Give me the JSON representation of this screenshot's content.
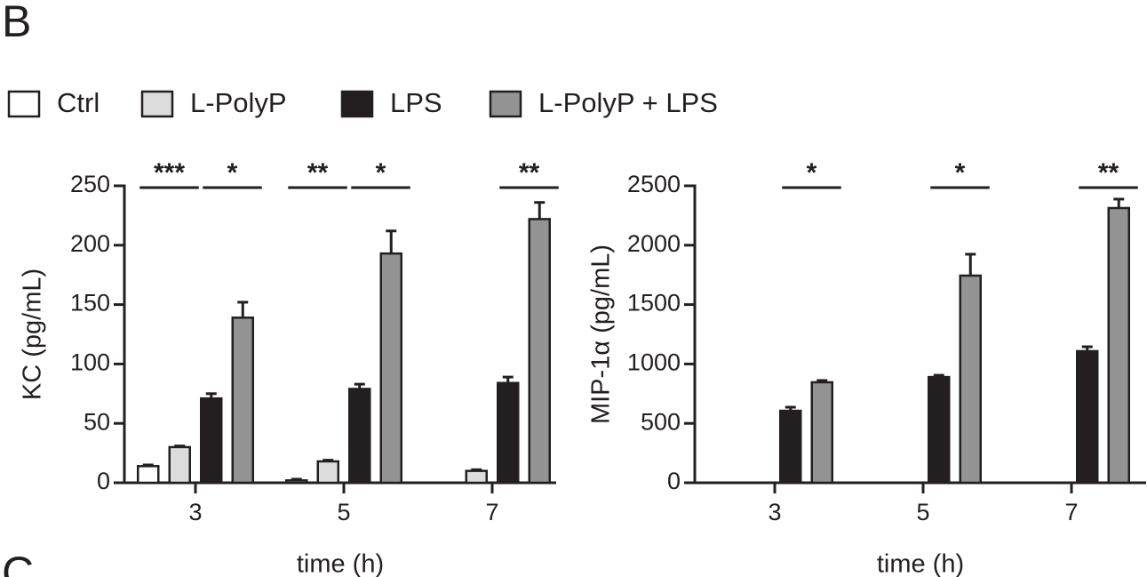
{
  "panels": [
    "B",
    "C"
  ],
  "chart_data": [
    {
      "type": "bar",
      "ylabel": "KC (pg/mL)",
      "xlabel": "time (h)",
      "categories": [
        "3",
        "5",
        "7"
      ],
      "ylim": [
        0,
        250
      ],
      "yticks": [
        0,
        50,
        100,
        150,
        200,
        250
      ],
      "series": [
        {
          "name": "Ctrl",
          "color": "#ffffff",
          "values": [
            14,
            2,
            0
          ],
          "errors": [
            1,
            1,
            0
          ]
        },
        {
          "name": "L-PolyP",
          "color": "#dcdcdc",
          "values": [
            30,
            18,
            10
          ],
          "errors": [
            1,
            1,
            1
          ]
        },
        {
          "name": "LPS",
          "color": "#231f20",
          "values": [
            71,
            79,
            84
          ],
          "errors": [
            4,
            4,
            5
          ]
        },
        {
          "name": "L-PolyP + LPS",
          "color": "#939393",
          "values": [
            139,
            193,
            222
          ],
          "errors": [
            13,
            19,
            14
          ]
        }
      ],
      "annotations": [
        {
          "text": "***",
          "category": 0,
          "series": [
            0,
            1
          ]
        },
        {
          "text": "*",
          "category": 0,
          "series": [
            2,
            3
          ]
        },
        {
          "text": "**",
          "category": 1,
          "series": [
            0,
            1
          ]
        },
        {
          "text": "*",
          "category": 1,
          "series": [
            2,
            3
          ]
        },
        {
          "text": "**",
          "category": 2,
          "series": [
            2,
            3
          ]
        }
      ]
    },
    {
      "type": "bar",
      "ylabel": "MIP-1α (pg/mL)",
      "xlabel": "time (h)",
      "categories": [
        "3",
        "5",
        "7"
      ],
      "ylim": [
        0,
        2500
      ],
      "yticks": [
        0,
        500,
        1000,
        1500,
        2000,
        2500
      ],
      "series": [
        {
          "name": "Ctrl",
          "color": "#ffffff",
          "values": [
            0,
            0,
            0
          ],
          "errors": [
            0,
            0,
            0
          ]
        },
        {
          "name": "L-PolyP",
          "color": "#dcdcdc",
          "values": [
            0,
            0,
            0
          ],
          "errors": [
            0,
            0,
            0
          ]
        },
        {
          "name": "LPS",
          "color": "#231f20",
          "values": [
            606,
            890,
            1108
          ],
          "errors": [
            30,
            15,
            37
          ]
        },
        {
          "name": "L-PolyP + LPS",
          "color": "#939393",
          "values": [
            846,
            1744,
            2313
          ],
          "errors": [
            15,
            180,
            75
          ]
        }
      ],
      "annotations": [
        {
          "text": "*",
          "category": 0,
          "series": [
            2,
            3
          ]
        },
        {
          "text": "*",
          "category": 1,
          "series": [
            2,
            3
          ]
        },
        {
          "text": "**",
          "category": 2,
          "series": [
            2,
            3
          ]
        }
      ]
    }
  ]
}
